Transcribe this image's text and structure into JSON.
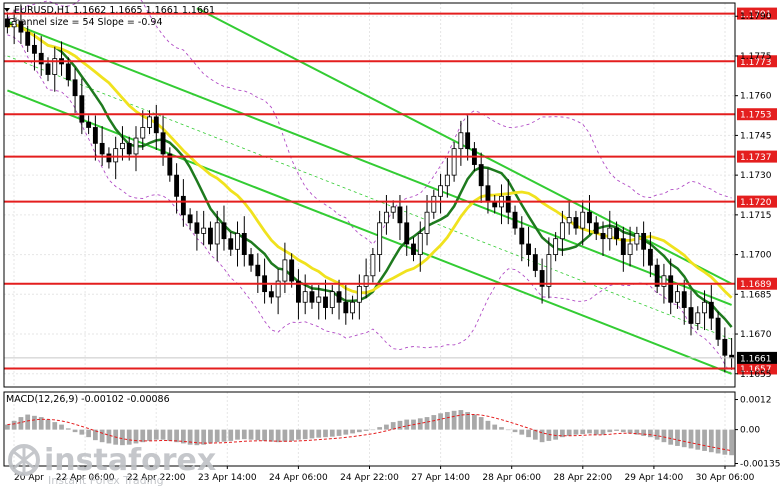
{
  "header": {
    "title": "EURUSD,H1  1.1662 1.1665 1.1661 1.1661",
    "subtitle": "Channel size = 54 Slope = -0.94"
  },
  "macd_label": "MACD(12,26,9) -0.00102 -0.00086",
  "watermark": {
    "brand": "instaforex",
    "tagline": "Instant Forex Trading"
  },
  "colors": {
    "candle": "#000000",
    "level_line": "#e41e1e",
    "channel": "#33cc33",
    "ma_fast": "#1e7a1e",
    "ma_slow": "#f0e21e",
    "bollinger": "#b24dc6",
    "macd_hist": "#a9a9a9",
    "macd_signal": "#e41e1e"
  },
  "chart_data": {
    "type": "candlestick",
    "ylim": [
      1.165,
      1.1795
    ],
    "price_ticks": [
      "1.1790",
      "1.1775",
      "1.1760",
      "1.1745",
      "1.1730",
      "1.1715",
      "1.1700",
      "1.1685",
      "1.1670",
      "1.1655"
    ],
    "x_ticks": [
      "20 Apr",
      "22 Apr 06:00",
      "22 Apr 22:00",
      "23 Apr 14:00",
      "24 Apr 06:00",
      "24 Apr 22:00",
      "27 Apr 14:00",
      "28 Apr 06:00",
      "28 Apr 22:00",
      "29 Apr 14:00",
      "30 Apr 06:00"
    ],
    "levels": [
      {
        "label": "1.1791",
        "value": 1.1791
      },
      {
        "label": "1.1773",
        "value": 1.1773
      },
      {
        "label": "1.1753",
        "value": 1.1753
      },
      {
        "label": "1.1737",
        "value": 1.1737
      },
      {
        "label": "1.1720",
        "value": 1.172
      },
      {
        "label": "1.1689",
        "value": 1.1689
      },
      {
        "label": "1.1657",
        "value": 1.1657
      }
    ],
    "current_price": {
      "label": "1.1661",
      "value": 1.1661
    },
    "close_series": [
      1.1786,
      1.1788,
      1.1784,
      1.1779,
      1.1776,
      1.1772,
      1.1768,
      1.1774,
      1.1772,
      1.1766,
      1.176,
      1.175,
      1.1748,
      1.1742,
      1.1738,
      1.1735,
      1.174,
      1.1742,
      1.1738,
      1.1744,
      1.1748,
      1.1752,
      1.1746,
      1.1738,
      1.173,
      1.1722,
      1.1715,
      1.1712,
      1.1708,
      1.171,
      1.1704,
      1.1712,
      1.1706,
      1.1702,
      1.1708,
      1.17,
      1.1696,
      1.1692,
      1.1686,
      1.1684,
      1.169,
      1.1698,
      1.169,
      1.1682,
      1.1686,
      1.1682,
      1.1684,
      1.168,
      1.1686,
      1.1682,
      1.1678,
      1.1682,
      1.1688,
      1.1692,
      1.17,
      1.1712,
      1.1716,
      1.1718,
      1.1712,
      1.1704,
      1.17,
      1.1708,
      1.1716,
      1.1722,
      1.1726,
      1.173,
      1.174,
      1.1746,
      1.174,
      1.1734,
      1.1726,
      1.172,
      1.1718,
      1.1722,
      1.1716,
      1.171,
      1.1704,
      1.17,
      1.1694,
      1.1688,
      1.17,
      1.1706,
      1.1712,
      1.1714,
      1.171,
      1.1716,
      1.1712,
      1.1708,
      1.1706,
      1.171,
      1.1706,
      1.17,
      1.1704,
      1.1708,
      1.1702,
      1.1696,
      1.1688,
      1.1692,
      1.1682,
      1.1686,
      1.168,
      1.1674,
      1.1678,
      1.1682,
      1.1676,
      1.1668,
      1.1662,
      1.1661
    ],
    "channel_lines": [
      {
        "x": [
          0,
          107
        ],
        "y": [
          1.1788,
          1.1681
        ]
      },
      {
        "x": [
          0,
          107
        ],
        "y": [
          1.1762,
          1.1655
        ]
      }
    ],
    "channel_upper2": {
      "x": [
        28,
        107
      ],
      "y": [
        1.1793,
        1.1689
      ]
    },
    "macd": {
      "yticks": [
        "0.0012",
        "0.00",
        "-0.00135"
      ],
      "ylim": [
        -0.00145,
        0.0015
      ],
      "hist": [
        0.0002,
        0.00035,
        0.0005,
        0.0006,
        0.00055,
        0.0005,
        0.0004,
        0.0003,
        0.0002,
        5e-05,
        -0.0001,
        -0.0002,
        -0.0003,
        -0.00042,
        -0.0005,
        -0.00055,
        -0.0006,
        -0.00062,
        -0.0006,
        -0.00055,
        -0.0005,
        -0.00045,
        -0.0004,
        -0.0004,
        -0.00045,
        -0.0005,
        -0.00055,
        -0.0006,
        -0.00062,
        -0.0006,
        -0.00055,
        -0.0005,
        -0.00048,
        -0.00045,
        -0.0004,
        -0.00038,
        -0.0004,
        -0.00042,
        -0.00045,
        -0.00048,
        -0.0005,
        -0.00048,
        -0.00045,
        -0.0004,
        -0.00038,
        -0.00035,
        -0.00032,
        -0.0003,
        -0.00028,
        -0.00025,
        -0.0002,
        -0.00015,
        -0.0001,
        -5e-05,
        0.0,
        0.0001,
        0.0002,
        0.0003,
        0.00035,
        0.0004,
        0.0004,
        0.00045,
        0.0005,
        0.00058,
        0.00065,
        0.0007,
        0.00075,
        0.00078,
        0.0007,
        0.0006,
        0.0005,
        0.00035,
        0.0002,
        0.0001,
        0.0,
        -0.0001,
        -0.0002,
        -0.0003,
        -0.0004,
        -0.0005,
        -0.00045,
        -0.0004,
        -0.0003,
        -0.00025,
        -0.0002,
        -0.00018,
        -0.00015,
        -0.0002,
        -0.0002,
        -0.0001,
        -5e-05,
        -0.0001,
        -0.00015,
        -0.0002,
        -0.00025,
        -0.0003,
        -0.0004,
        -0.0005,
        -0.0006,
        -0.00065,
        -0.0007,
        -0.00075,
        -0.0008,
        -0.00085,
        -0.0009,
        -0.00095,
        -0.001,
        -0.00102
      ]
    }
  }
}
